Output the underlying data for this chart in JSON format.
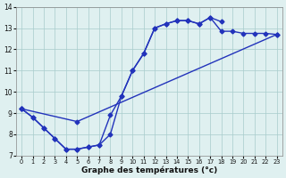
{
  "xlabel": "Graphe des températures (°c)",
  "bg_color": "#dff0f0",
  "line_color": "#2233bb",
  "grid_color": "#a8cccc",
  "xlim": [
    -0.5,
    23.5
  ],
  "ylim": [
    7,
    14
  ],
  "xticks": [
    0,
    1,
    2,
    3,
    4,
    5,
    6,
    7,
    8,
    9,
    10,
    11,
    12,
    13,
    14,
    15,
    16,
    17,
    18,
    19,
    20,
    21,
    22,
    23
  ],
  "yticks": [
    7,
    8,
    9,
    10,
    11,
    12,
    13,
    14
  ],
  "line1_x": [
    0,
    1,
    2,
    3,
    4,
    5,
    6,
    7,
    8,
    9,
    10,
    11,
    12,
    13,
    14,
    15,
    16,
    17,
    18
  ],
  "line1_y": [
    9.2,
    8.8,
    8.3,
    7.8,
    7.3,
    7.3,
    7.4,
    7.5,
    8.9,
    9.8,
    11.0,
    11.8,
    13.0,
    13.2,
    13.35,
    13.35,
    13.2,
    13.5,
    13.3
  ],
  "line2_x": [
    0,
    1,
    2,
    3,
    4,
    5,
    6,
    7,
    8,
    9,
    10,
    11,
    12,
    13,
    14,
    15,
    16,
    17,
    18,
    19,
    20,
    21,
    22,
    23
  ],
  "line2_y": [
    9.2,
    8.8,
    8.3,
    7.8,
    7.3,
    7.3,
    7.4,
    7.5,
    8.0,
    9.8,
    11.0,
    11.8,
    13.0,
    13.2,
    13.35,
    13.35,
    13.2,
    13.5,
    12.85,
    12.85,
    12.75,
    12.75,
    12.75,
    12.7
  ],
  "line3_x": [
    0,
    5,
    23
  ],
  "line3_y": [
    9.2,
    8.6,
    12.7
  ],
  "marker": "D",
  "markersize": 2.5,
  "linewidth": 1.0
}
